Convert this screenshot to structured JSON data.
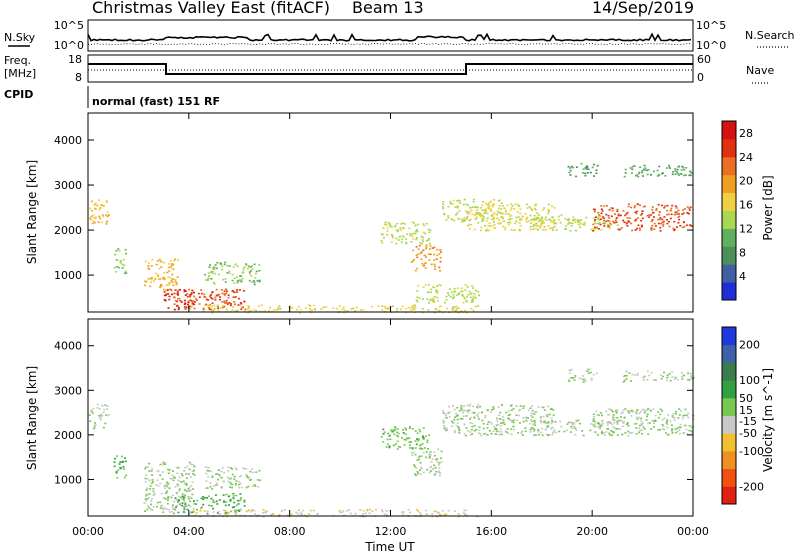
{
  "header": {
    "title": "Christmas Valley East (fitACF)",
    "beam": "Beam 13",
    "date": "14/Sep/2019"
  },
  "labels": {
    "nsky": "N.Sky",
    "nsearch": "N.Search",
    "freq_line1": "Freq.",
    "freq_line2": "[MHz]",
    "nave": "Nave",
    "cpid": "CPID",
    "cpid_value": "normal (fast) 151 RF",
    "time_axis": "Time UT"
  },
  "noise_axis": {
    "left_ticks": [
      "10^5",
      "10^0"
    ],
    "right_ticks": [
      "10^5",
      "10^0"
    ]
  },
  "freq_axis": {
    "left_ticks": [
      "18",
      "8"
    ],
    "right_ticks": [
      "60",
      "0"
    ]
  },
  "colors": {
    "power": [
      "#1f2fd8",
      "#3f5fa0",
      "#4c8f5a",
      "#5fb05f",
      "#a8d850",
      "#f0d040",
      "#f0a020",
      "#e87020",
      "#e03010",
      "#d41010"
    ],
    "velocity": [
      "#e02010",
      "#f05010",
      "#f09020",
      "#f0c030",
      "#c8c8c8",
      "#78c850",
      "#30a040",
      "#3b7c4a",
      "#3d62a8",
      "#1e3adc"
    ]
  },
  "chart_data": [
    {
      "type": "heatmap",
      "title": "Power",
      "ylabel": "Slant Range [km]",
      "xlabel": "Time UT",
      "x_ticks": [
        "00:00",
        "04:00",
        "08:00",
        "12:00",
        "16:00",
        "20:00",
        "00:00"
      ],
      "x_range_hours": [
        0,
        24
      ],
      "y_ticks": [
        1000,
        2000,
        3000,
        4000
      ],
      "ylim": [
        180,
        4600
      ],
      "colorbar": {
        "label": "Power [dB]",
        "ticks": [
          4,
          8,
          12,
          16,
          20,
          24,
          28
        ],
        "range": [
          0,
          30
        ]
      },
      "regions": [
        {
          "t": [
            0.0,
            0.8
          ],
          "r": [
            2150,
            2700
          ],
          "value": 18
        },
        {
          "t": [
            1.0,
            1.5
          ],
          "r": [
            1050,
            1600
          ],
          "value": 12
        },
        {
          "t": [
            2.2,
            3.6
          ],
          "r": [
            650,
            1400
          ],
          "value": 18
        },
        {
          "t": [
            3.0,
            4.2
          ],
          "r": [
            250,
            700
          ],
          "value": 28
        },
        {
          "t": [
            3.4,
            6.2
          ],
          "r": [
            250,
            700
          ],
          "value": 24
        },
        {
          "t": [
            4.6,
            6.8
          ],
          "r": [
            800,
            1300
          ],
          "value": 12
        },
        {
          "t": [
            4.0,
            15.5
          ],
          "r": [
            180,
            350
          ],
          "value": 16
        },
        {
          "t": [
            11.6,
            13.6
          ],
          "r": [
            1700,
            2200
          ],
          "value": 14
        },
        {
          "t": [
            12.8,
            14.0
          ],
          "r": [
            1100,
            1700
          ],
          "value": 20
        },
        {
          "t": [
            13.0,
            15.5
          ],
          "r": [
            400,
            800
          ],
          "value": 14
        },
        {
          "t": [
            14.0,
            16.5
          ],
          "r": [
            2200,
            2700
          ],
          "value": 14
        },
        {
          "t": [
            15.0,
            18.5
          ],
          "r": [
            2000,
            2600
          ],
          "value": 16
        },
        {
          "t": [
            17.5,
            21.0
          ],
          "r": [
            2000,
            2350
          ],
          "value": 14
        },
        {
          "t": [
            20.0,
            24.0
          ],
          "r": [
            2000,
            2600
          ],
          "value": 24
        },
        {
          "t": [
            19.0,
            20.2
          ],
          "r": [
            3200,
            3500
          ],
          "value": 8
        },
        {
          "t": [
            21.2,
            24.0
          ],
          "r": [
            3200,
            3450
          ],
          "value": 10
        }
      ]
    },
    {
      "type": "heatmap",
      "title": "Velocity",
      "ylabel": "Slant Range [km]",
      "xlabel": "Time UT",
      "x_ticks": [
        "00:00",
        "04:00",
        "08:00",
        "12:00",
        "16:00",
        "20:00",
        "00:00"
      ],
      "x_range_hours": [
        0,
        24
      ],
      "y_ticks": [
        1000,
        2000,
        3000,
        4000
      ],
      "ylim": [
        180,
        4600
      ],
      "colorbar": {
        "label": "Velocity [m s^-1]",
        "ticks": [
          200,
          100,
          50,
          15,
          -15,
          -50,
          -100,
          -200
        ],
        "range": [
          -250,
          250
        ]
      },
      "regions": [
        {
          "t": [
            0.0,
            0.8
          ],
          "r": [
            2150,
            2700
          ],
          "value": 0
        },
        {
          "t": [
            1.0,
            1.5
          ],
          "r": [
            1050,
            1600
          ],
          "value": 70
        },
        {
          "t": [
            2.2,
            4.2
          ],
          "r": [
            250,
            1400
          ],
          "value": 0
        },
        {
          "t": [
            3.4,
            6.2
          ],
          "r": [
            250,
            700
          ],
          "value": 60
        },
        {
          "t": [
            4.6,
            6.8
          ],
          "r": [
            800,
            1300
          ],
          "value": 0
        },
        {
          "t": [
            4.0,
            15.5
          ],
          "r": [
            180,
            350
          ],
          "value": -40
        },
        {
          "t": [
            11.6,
            13.6
          ],
          "r": [
            1700,
            2200
          ],
          "value": 30
        },
        {
          "t": [
            12.8,
            14.0
          ],
          "r": [
            1100,
            1700
          ],
          "value": 0
        },
        {
          "t": [
            14.0,
            18.5
          ],
          "r": [
            2000,
            2700
          ],
          "value": 0
        },
        {
          "t": [
            17.5,
            21.0
          ],
          "r": [
            2000,
            2350
          ],
          "value": 0
        },
        {
          "t": [
            20.0,
            24.0
          ],
          "r": [
            2000,
            2600
          ],
          "value": 0
        },
        {
          "t": [
            19.0,
            20.2
          ],
          "r": [
            3200,
            3500
          ],
          "value": 0
        },
        {
          "t": [
            21.2,
            24.0
          ],
          "r": [
            3200,
            3450
          ],
          "value": 0
        }
      ]
    }
  ]
}
